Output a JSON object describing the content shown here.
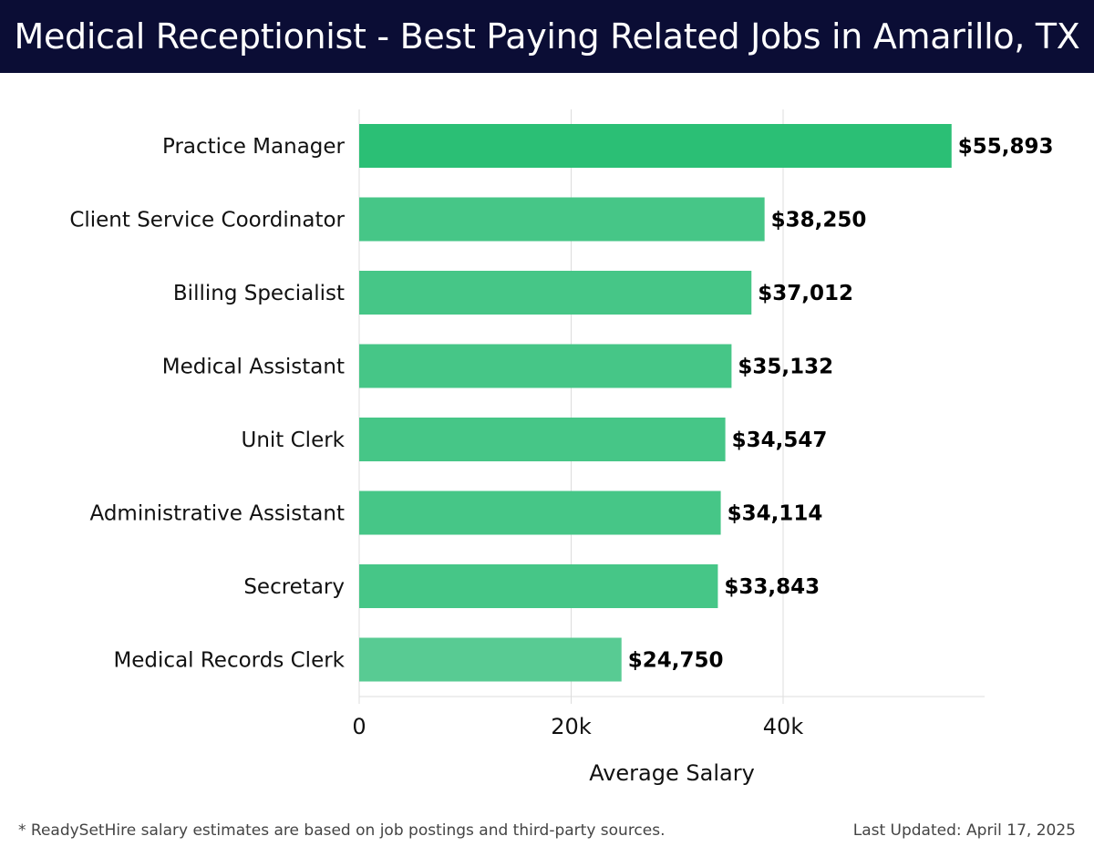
{
  "header": {
    "title": "Medical Receptionist - Best Paying Related Jobs in Amarillo, TX"
  },
  "chart_data": {
    "type": "bar",
    "orientation": "horizontal",
    "title": "Medical Receptionist - Best Paying Related Jobs in Amarillo, TX",
    "xlabel": "Average Salary",
    "ylabel": "",
    "xlim": [
      0,
      58500
    ],
    "x_ticks": [
      0,
      20000,
      40000
    ],
    "x_tick_labels": [
      "0",
      "20k",
      "40k"
    ],
    "grid": true,
    "categories": [
      "Practice Manager",
      "Client Service Coordinator",
      "Billing Specialist",
      "Medical Assistant",
      "Unit Clerk",
      "Administrative Assistant",
      "Secretary",
      "Medical Records Clerk"
    ],
    "values": [
      55893,
      38250,
      37012,
      35132,
      34547,
      34114,
      33843,
      24750
    ],
    "value_labels": [
      "$55,893",
      "$38,250",
      "$37,012",
      "$35,132",
      "$34,547",
      "$34,114",
      "$33,843",
      "$24,750"
    ],
    "bar_colors": [
      "#2bbf75",
      "#46c687",
      "#46c687",
      "#46c687",
      "#46c687",
      "#46c687",
      "#46c687",
      "#58cb93"
    ]
  },
  "footer": {
    "note": "* ReadySetHire salary estimates are based on job postings and third-party sources.",
    "updated": "Last Updated: April 17, 2025"
  }
}
